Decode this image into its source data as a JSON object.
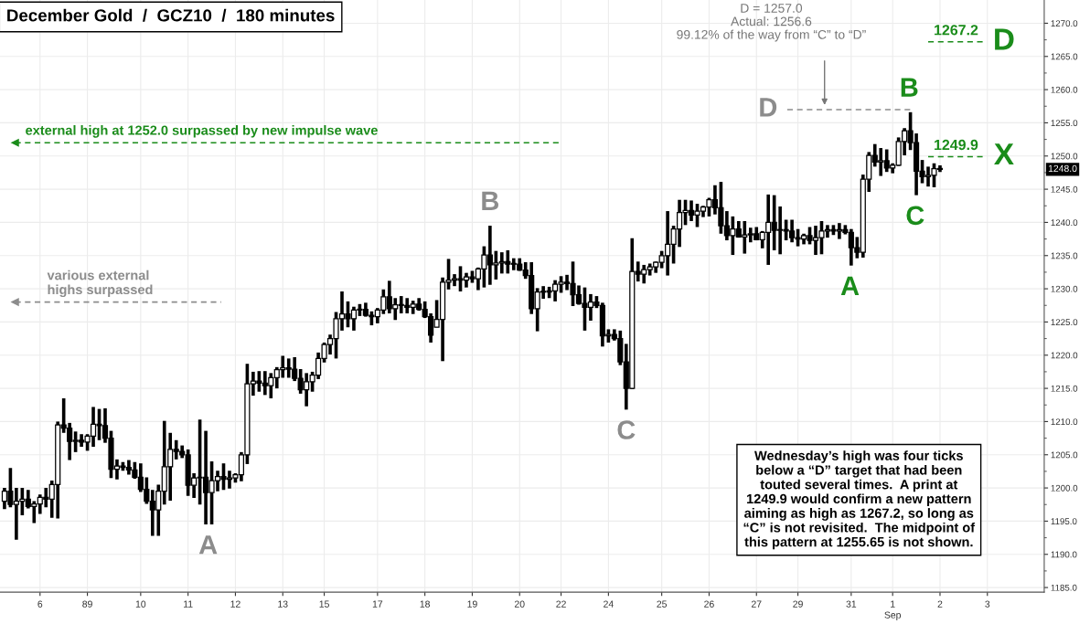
{
  "chart_data": {
    "type": "candlestick",
    "title": "December Gold  /  GCZ10  /  180 minutes",
    "categories": [
      null,
      null,
      null,
      null,
      null,
      null,
      "6",
      null,
      null,
      null,
      null,
      null,
      null,
      null,
      "89",
      null,
      null,
      null,
      null,
      null,
      null,
      null,
      null,
      "10",
      null,
      null,
      null,
      null,
      null,
      null,
      null,
      "11",
      null,
      null,
      null,
      null,
      null,
      null,
      null,
      "12",
      null,
      null,
      null,
      null,
      null,
      null,
      null,
      "13",
      null,
      null,
      null,
      null,
      null,
      null,
      "15",
      null,
      null,
      null,
      null,
      null,
      null,
      null,
      null,
      "17",
      null,
      null,
      null,
      null,
      null,
      null,
      null,
      "18",
      null,
      null,
      null,
      null,
      null,
      null,
      null,
      "19",
      null,
      null,
      null,
      null,
      null,
      null,
      null,
      "20",
      null,
      null,
      null,
      null,
      null,
      null,
      "22",
      null,
      null,
      null,
      null,
      null,
      null,
      null,
      "24",
      null,
      null,
      null,
      null,
      null,
      null,
      null,
      null,
      "25",
      null,
      null,
      null,
      null,
      null,
      null,
      null,
      "26",
      null,
      null,
      null,
      null,
      null,
      null,
      null,
      "27",
      null,
      null,
      null,
      null,
      null,
      null,
      "29",
      null,
      null,
      null,
      null,
      null,
      null,
      null,
      null,
      "31",
      null,
      null,
      null,
      null,
      null,
      null,
      "1\nSep",
      null,
      null,
      null,
      null,
      null,
      null,
      null,
      "2",
      null,
      null,
      null,
      null,
      null,
      null,
      null,
      "3",
      null,
      null,
      null,
      null,
      null,
      null,
      null,
      null,
      null
    ],
    "ohlc": [
      [
        1198.0,
        1200.0,
        1196.8,
        1199.5
      ],
      [
        1199.5,
        1203.0,
        1197.1,
        1197.5
      ],
      [
        1197.5,
        1200.0,
        1192.2,
        1198.0
      ],
      [
        1198.0,
        1200.0,
        1195.9,
        1198.3
      ],
      [
        1198.3,
        1199.7,
        1196.9,
        1197.2
      ],
      [
        1197.2,
        1198.0,
        1194.7,
        1197.6
      ],
      [
        1197.6,
        1199.0,
        1196.1,
        1198.6
      ],
      [
        1198.6,
        1200.0,
        1197.1,
        1198.3
      ],
      [
        1198.3,
        1201.1,
        1195.5,
        1200.5
      ],
      [
        1200.5,
        1210.0,
        1195.4,
        1209.5
      ],
      [
        1209.5,
        1213.5,
        1208.3,
        1209.0
      ],
      [
        1209.0,
        1209.8,
        1204.2,
        1207.0
      ],
      [
        1207.0,
        1208.5,
        1205.4,
        1207.2
      ],
      [
        1207.2,
        1208.1,
        1206.2,
        1206.9
      ],
      [
        1206.9,
        1208.1,
        1205.6,
        1207.8
      ],
      [
        1207.8,
        1212.2,
        1206.2,
        1209.6
      ],
      [
        1209.6,
        1211.9,
        1207.2,
        1209.4
      ],
      [
        1209.4,
        1212.0,
        1206.8,
        1207.5
      ],
      [
        1207.5,
        1208.6,
        1201.5,
        1202.8
      ],
      [
        1202.8,
        1204.3,
        1201.3,
        1203.3
      ],
      [
        1203.3,
        1203.9,
        1202.6,
        1203.1
      ],
      [
        1203.1,
        1204.2,
        1202.0,
        1202.7
      ],
      [
        1202.7,
        1203.9,
        1201.4,
        1201.6
      ],
      [
        1201.6,
        1203.7,
        1199.4,
        1199.8
      ],
      [
        1199.8,
        1201.6,
        1197.6,
        1198.0
      ],
      [
        1198.0,
        1199.7,
        1192.8,
        1196.7
      ],
      [
        1196.7,
        1200.5,
        1192.8,
        1199.5
      ],
      [
        1199.5,
        1210.1,
        1197.5,
        1203.2
      ],
      [
        1203.2,
        1208.3,
        1198.1,
        1205.8
      ],
      [
        1205.8,
        1207.2,
        1204.3,
        1205.5
      ],
      [
        1205.5,
        1206.4,
        1204.5,
        1205.0
      ],
      [
        1205.0,
        1205.8,
        1198.8,
        1200.4
      ],
      [
        1200.4,
        1202.2,
        1198.5,
        1201.5
      ],
      [
        1201.5,
        1210.3,
        1197.5,
        1201.6
      ],
      [
        1201.6,
        1208.6,
        1194.5,
        1199.3
      ],
      [
        1199.3,
        1204.0,
        1194.5,
        1201.1
      ],
      [
        1201.1,
        1202.6,
        1199.5,
        1201.7
      ],
      [
        1201.7,
        1203.7,
        1199.7,
        1201.3
      ],
      [
        1201.3,
        1202.6,
        1199.9,
        1201.5
      ],
      [
        1201.5,
        1202.2,
        1200.8,
        1202.0
      ],
      [
        1202.0,
        1205.4,
        1201.0,
        1205.0
      ],
      [
        1205.0,
        1218.7,
        1203.6,
        1215.7
      ],
      [
        1215.7,
        1217.5,
        1213.9,
        1216.1
      ],
      [
        1216.1,
        1217.6,
        1214.5,
        1215.8
      ],
      [
        1215.8,
        1217.6,
        1214.0,
        1215.4
      ],
      [
        1215.4,
        1217.3,
        1213.5,
        1216.6
      ],
      [
        1216.6,
        1218.2,
        1215.0,
        1217.8
      ],
      [
        1217.8,
        1219.9,
        1216.6,
        1218.1
      ],
      [
        1218.1,
        1219.5,
        1216.6,
        1217.9
      ],
      [
        1217.9,
        1219.7,
        1216.1,
        1216.5
      ],
      [
        1216.5,
        1217.9,
        1214.2,
        1214.8
      ],
      [
        1214.8,
        1217.3,
        1212.3,
        1216.0
      ],
      [
        1216.0,
        1217.5,
        1214.5,
        1217.0
      ],
      [
        1217.0,
        1220.4,
        1216.4,
        1219.5
      ],
      [
        1219.5,
        1221.9,
        1218.9,
        1221.6
      ],
      [
        1221.6,
        1223.1,
        1220.1,
        1222.5
      ],
      [
        1222.5,
        1226.5,
        1219.5,
        1225.5
      ],
      [
        1225.5,
        1229.6,
        1223.7,
        1226.2
      ],
      [
        1226.2,
        1228.1,
        1224.2,
        1225.5
      ],
      [
        1225.5,
        1227.3,
        1223.7,
        1226.8
      ],
      [
        1226.8,
        1227.7,
        1225.9,
        1226.9
      ],
      [
        1226.9,
        1227.9,
        1225.8,
        1226.0
      ],
      [
        1226.0,
        1226.6,
        1224.5,
        1225.8
      ],
      [
        1225.8,
        1227.1,
        1224.8,
        1226.8
      ],
      [
        1226.8,
        1229.9,
        1226.2,
        1228.8
      ],
      [
        1228.8,
        1231.2,
        1226.3,
        1227.0
      ],
      [
        1227.0,
        1228.6,
        1225.3,
        1227.6
      ],
      [
        1227.6,
        1228.9,
        1226.3,
        1227.5
      ],
      [
        1227.5,
        1228.6,
        1226.3,
        1227.2
      ],
      [
        1227.2,
        1228.2,
        1226.2,
        1227.7
      ],
      [
        1227.7,
        1228.6,
        1226.7,
        1226.9
      ],
      [
        1226.9,
        1228.1,
        1225.6,
        1225.8
      ],
      [
        1225.8,
        1226.3,
        1221.9,
        1223.0
      ],
      [
        1224.2,
        1228.3,
        1224.2,
        1225.4
      ],
      [
        1225.4,
        1231.7,
        1219.1,
        1231.0
      ],
      [
        1231.0,
        1234.5,
        1229.9,
        1231.3
      ],
      [
        1231.3,
        1232.2,
        1230.4,
        1231.5
      ],
      [
        1231.5,
        1233.4,
        1229.6,
        1231.3
      ],
      [
        1231.3,
        1232.4,
        1230.2,
        1231.8
      ],
      [
        1231.8,
        1232.7,
        1230.9,
        1231.5
      ],
      [
        1231.5,
        1233.2,
        1229.8,
        1233.0
      ],
      [
        1233.0,
        1236.4,
        1230.2,
        1235.1
      ],
      [
        1235.1,
        1239.5,
        1230.6,
        1233.6
      ],
      [
        1233.6,
        1235.7,
        1231.4,
        1233.9
      ],
      [
        1233.9,
        1235.5,
        1232.3,
        1234.1
      ],
      [
        1234.1,
        1235.8,
        1232.3,
        1233.7
      ],
      [
        1233.7,
        1234.6,
        1232.8,
        1233.7
      ],
      [
        1233.7,
        1234.6,
        1232.7,
        1232.8
      ],
      [
        1232.8,
        1234.0,
        1231.5,
        1232.0
      ],
      [
        1232.0,
        1234.0,
        1226.2,
        1227.0
      ],
      [
        1227.0,
        1230.1,
        1223.6,
        1229.5
      ],
      [
        1229.5,
        1230.4,
        1228.5,
        1229.5
      ],
      [
        1229.5,
        1230.3,
        1228.6,
        1229.7
      ],
      [
        1229.7,
        1231.3,
        1228.1,
        1230.7
      ],
      [
        1230.7,
        1231.9,
        1229.4,
        1231.0
      ],
      [
        1231.0,
        1232.1,
        1229.8,
        1230.8
      ],
      [
        1230.8,
        1234.1,
        1227.4,
        1229.1
      ],
      [
        1229.1,
        1230.5,
        1227.6,
        1227.8
      ],
      [
        1227.8,
        1230.2,
        1223.7,
        1227.2
      ],
      [
        1227.2,
        1229.2,
        1225.2,
        1228.0
      ],
      [
        1228.0,
        1228.9,
        1227.1,
        1227.5
      ],
      [
        1227.5,
        1227.9,
        1221.3,
        1222.9
      ],
      [
        1222.9,
        1223.9,
        1221.9,
        1223.1
      ],
      [
        1223.1,
        1223.9,
        1222.2,
        1222.5
      ],
      [
        1222.5,
        1223.7,
        1218.5,
        1219.0
      ],
      [
        1219.0,
        1221.7,
        1211.8,
        1215.0
      ],
      [
        1215.0,
        1237.6,
        1214.9,
        1232.6
      ],
      [
        1232.6,
        1234.1,
        1231.1,
        1232.2
      ],
      [
        1232.2,
        1233.6,
        1230.8,
        1232.9
      ],
      [
        1232.9,
        1233.8,
        1232.0,
        1233.3
      ],
      [
        1233.3,
        1234.1,
        1232.4,
        1234.0
      ],
      [
        1234.0,
        1235.7,
        1233.1,
        1235.0
      ],
      [
        1235.0,
        1241.7,
        1232.0,
        1236.7
      ],
      [
        1236.7,
        1239.5,
        1233.8,
        1239.0
      ],
      [
        1239.0,
        1243.4,
        1236.3,
        1241.5
      ],
      [
        1241.5,
        1243.4,
        1239.6,
        1241.8
      ],
      [
        1241.8,
        1243.3,
        1240.2,
        1241.1
      ],
      [
        1241.1,
        1242.8,
        1239.3,
        1241.7
      ],
      [
        1241.7,
        1242.5,
        1240.8,
        1242.3
      ],
      [
        1242.3,
        1243.7,
        1240.9,
        1243.4
      ],
      [
        1243.4,
        1245.6,
        1241.2,
        1242.2
      ],
      [
        1242.2,
        1246.1,
        1238.3,
        1239.5
      ],
      [
        1239.5,
        1241.7,
        1237.3,
        1238.0
      ],
      [
        1238.0,
        1240.9,
        1235.1,
        1239.0
      ],
      [
        1239.0,
        1240.2,
        1237.7,
        1237.8
      ],
      [
        1237.8,
        1240.2,
        1235.3,
        1238.1
      ],
      [
        1238.1,
        1239.2,
        1237.0,
        1238.3
      ],
      [
        1238.3,
        1239.3,
        1237.3,
        1237.4
      ],
      [
        1237.4,
        1238.7,
        1236.1,
        1238.5
      ],
      [
        1238.5,
        1244.2,
        1233.6,
        1240.0
      ],
      [
        1240.0,
        1244.1,
        1235.8,
        1238.8
      ],
      [
        1238.8,
        1242.4,
        1235.2,
        1238.9
      ],
      [
        1238.9,
        1240.4,
        1237.3,
        1238.7
      ],
      [
        1238.7,
        1240.4,
        1237.0,
        1237.7
      ],
      [
        1237.7,
        1239.0,
        1236.4,
        1237.5
      ],
      [
        1237.5,
        1238.3,
        1236.7,
        1238.0
      ],
      [
        1238.0,
        1239.3,
        1236.7,
        1237.3
      ],
      [
        1237.3,
        1239.5,
        1235.1,
        1237.7
      ],
      [
        1237.7,
        1240.2,
        1235.2,
        1238.7
      ],
      [
        1238.7,
        1239.6,
        1237.7,
        1238.9
      ],
      [
        1238.9,
        1239.6,
        1238.1,
        1238.7
      ],
      [
        1238.7,
        1239.9,
        1237.5,
        1238.9
      ],
      [
        1238.9,
        1239.6,
        1238.2,
        1238.5
      ],
      [
        1238.5,
        1239.0,
        1233.5,
        1236.2
      ],
      [
        1236.2,
        1237.8,
        1234.6,
        1235.5
      ],
      [
        1235.5,
        1247.2,
        1234.7,
        1246.5
      ],
      [
        1246.5,
        1250.6,
        1244.6,
        1250.1
      ],
      [
        1250.1,
        1251.8,
        1248.4,
        1249.1
      ],
      [
        1249.1,
        1251.2,
        1247.0,
        1249.3
      ],
      [
        1249.3,
        1251.0,
        1247.6,
        1248.2
      ],
      [
        1248.2,
        1248.9,
        1247.4,
        1248.6
      ],
      [
        1248.6,
        1252.8,
        1248.5,
        1252.2
      ],
      [
        1252.2,
        1254.2,
        1250.1,
        1253.8
      ],
      [
        1253.8,
        1256.6,
        1250.9,
        1252.0
      ],
      [
        1252.0,
        1253.4,
        1244.1,
        1247.7
      ],
      [
        1247.7,
        1249.4,
        1245.9,
        1246.9
      ],
      [
        1246.9,
        1248.4,
        1245.4,
        1247.1
      ],
      [
        1247.1,
        1248.9,
        1245.3,
        1248.1
      ],
      [
        1248.1,
        1248.6,
        1247.6,
        1248.0
      ],
      null,
      null,
      null,
      null,
      null,
      null,
      null,
      null,
      null,
      null,
      null,
      null,
      null,
      null,
      null,
      null,
      null
    ],
    "color": "#000000",
    "ylim": [
      1184.3,
      1273.5
    ],
    "yticks": [
      {
        "value": 1185,
        "label": "1185.0"
      },
      {
        "value": 1187.5,
        "label": null
      },
      {
        "value": 1190,
        "label": "1190.0"
      },
      {
        "value": 1192.5,
        "label": null
      },
      {
        "value": 1195,
        "label": "1195.0"
      },
      {
        "value": 1197.5,
        "label": null
      },
      {
        "value": 1200,
        "label": "1200.0"
      },
      {
        "value": 1202.5,
        "label": null
      },
      {
        "value": 1205,
        "label": "1205.0"
      },
      {
        "value": 1207.5,
        "label": null
      },
      {
        "value": 1210,
        "label": "1210.0"
      },
      {
        "value": 1212.5,
        "label": null
      },
      {
        "value": 1215,
        "label": "1215.0"
      },
      {
        "value": 1217.5,
        "label": null
      },
      {
        "value": 1220,
        "label": "1220.0"
      },
      {
        "value": 1222.5,
        "label": null
      },
      {
        "value": 1225,
        "label": "1225.0"
      },
      {
        "value": 1227.5,
        "label": null
      },
      {
        "value": 1230,
        "label": "1230.0"
      },
      {
        "value": 1232.5,
        "label": null
      },
      {
        "value": 1235,
        "label": "1235.0"
      },
      {
        "value": 1237.5,
        "label": null
      },
      {
        "value": 1240,
        "label": "1240.0"
      },
      {
        "value": 1242.5,
        "label": null
      },
      {
        "value": 1245,
        "label": "1245.0"
      },
      {
        "value": 1247.5,
        "label": null
      },
      {
        "value": 1250,
        "label": "1250.0"
      },
      {
        "value": 1252.5,
        "label": null
      },
      {
        "value": 1255,
        "label": "1255.0"
      },
      {
        "value": 1257.5,
        "label": null
      },
      {
        "value": 1260,
        "label": "1260.0"
      },
      {
        "value": 1262.5,
        "label": null
      },
      {
        "value": 1265,
        "label": "1265.0"
      },
      {
        "value": 1267.5,
        "label": null
      },
      {
        "value": 1270,
        "label": "1270.0"
      }
    ],
    "grid": true,
    "ref_lines": [
      {
        "axis": "y",
        "value": 1252.0,
        "label": "external high at 1252.0 surpassed by new impulse wave",
        "color": "#1a8c1a",
        "line_style": "dashed"
      },
      {
        "axis": "y",
        "value": 1228.0,
        "label": "various external\nhighs surpassed",
        "color": "#8c8c8c",
        "line_style": "dashed"
      },
      {
        "axis": "y",
        "value": 1257.0,
        "label": "D",
        "color": "#8c8c8c",
        "line_style": "dashed"
      },
      {
        "axis": "y",
        "value": 1267.2,
        "label": "1267.2",
        "color": "#1a8c1a",
        "line_style": "dashed"
      },
      {
        "axis": "y",
        "value": 1249.9,
        "label": "1249.9",
        "color": "#1a8c1a",
        "line_style": "dashed"
      }
    ],
    "annotations": [
      {
        "text": "A",
        "y": 1194.5
      },
      {
        "text": "B",
        "y": 1239.5
      },
      {
        "text": "C",
        "y": 1211.8
      },
      {
        "text": "A",
        "y": 1233.5
      },
      {
        "text": "B",
        "y": 1256.6
      },
      {
        "text": "C",
        "y": 1244.1
      },
      "D",
      "X",
      "D = 1257.0\nActual: 1256.6\n99.12% of the way from “C” to “D”",
      {
        "text": "1248.0",
        "y": 1248.0
      },
      "Wednesday’s high was four ticks\nbelow a “D” target that had been\ntouted several times.  A print at\n1249.9 would confirm a new pattern\naiming as high as 1267.2, so long as\n“C” is not revisited.  The midpoint of\nthis pattern at 1255.65 is not shown."
    ]
  }
}
